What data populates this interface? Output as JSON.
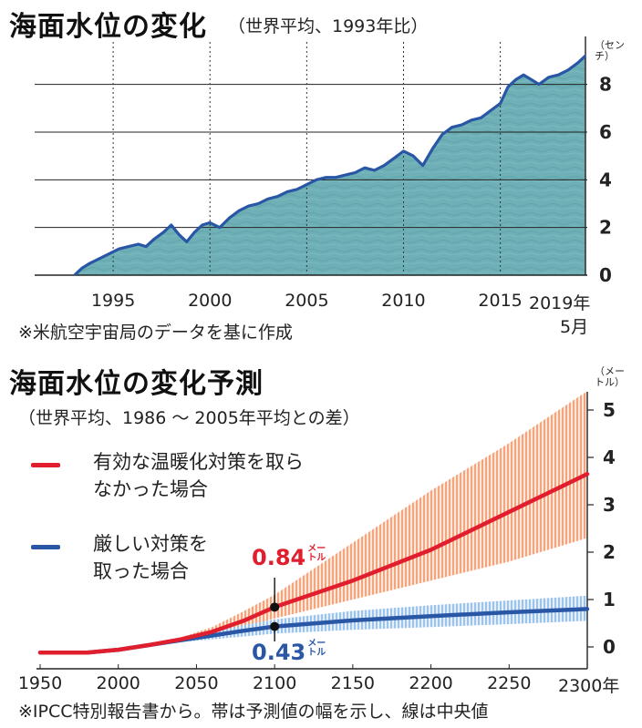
{
  "chart1": {
    "title": "海面水位の変化",
    "subtitle": "（世界平均、1993年比）",
    "unit_top": "（セン",
    "unit_bottom": "チ）",
    "note": "※米航空宇宙局のデータを基に作成",
    "last_tick_line1": "2019年",
    "last_tick_line2": "5月",
    "colors": {
      "line": "#2a56a6",
      "fill": "#6fb0b7",
      "grid": "#222222"
    }
  },
  "chart2": {
    "title": "海面水位の変化予測",
    "subtitle": "（世界平均、1986 ～ 2005年平均との差）",
    "unit_top": "（メー",
    "unit_bottom": "トル）",
    "note": "※IPCC特別報告書から。帯は予測値の幅を示し、線は中央値",
    "last_tick": "2300年",
    "legend": [
      {
        "label": "有効な温暖化対策を取らなかった場合",
        "color": "#e01e2e"
      },
      {
        "label": "厳しい対策を取った場合",
        "color": "#2a56a6"
      }
    ],
    "callouts": [
      {
        "value": "0.84",
        "unit_top": "メー",
        "unit_bottom": "トル",
        "color": "#e01e2e"
      },
      {
        "value": "0.43",
        "unit_top": "メー",
        "unit_bottom": "トル",
        "color": "#2a56a6"
      }
    ],
    "colors": {
      "high_band": "#f2a47e",
      "low_band": "#9cc3ea"
    }
  },
  "chart_data": [
    {
      "type": "area",
      "title": "海面水位の変化",
      "subtitle": "（世界平均、1993年比）",
      "xlabel": "",
      "ylabel": "（センチ）",
      "x_ticks": [
        "1995",
        "2000",
        "2005",
        "2010",
        "2015",
        "2019年5月"
      ],
      "y_ticks": [
        0,
        2,
        4,
        6,
        8
      ],
      "xlim": [
        1993,
        2019.4
      ],
      "ylim": [
        0,
        9.4
      ],
      "grid": "horizontal at y ticks, dotted vertical at 1995/2000/2005/2010/2015",
      "series": [
        {
          "x": [
            1993.0,
            1993.4,
            1993.8,
            1994.3,
            1994.8,
            1995.3,
            1995.8,
            1996.3,
            1996.7,
            1997.1,
            1997.6,
            1998.0,
            1998.4,
            1998.8,
            1999.2,
            1999.6,
            2000.0,
            2000.5,
            2001.0,
            2001.5,
            2002.0,
            2002.5,
            2003.0,
            2003.5,
            2004.0,
            2004.5,
            2005.0,
            2005.5,
            2006.0,
            2006.5,
            2007.0,
            2007.5,
            2008.0,
            2008.5,
            2009.0,
            2009.5,
            2010.0,
            2010.5,
            2011.0,
            2011.5,
            2012.0,
            2012.5,
            2013.0,
            2013.5,
            2014.0,
            2014.5,
            2015.0,
            2015.4,
            2015.8,
            2016.2,
            2016.6,
            2017.0,
            2017.5,
            2018.0,
            2018.5,
            2019.0,
            2019.4
          ],
          "values": [
            0.0,
            0.3,
            0.5,
            0.7,
            0.9,
            1.1,
            1.2,
            1.3,
            1.2,
            1.5,
            1.8,
            2.1,
            1.7,
            1.4,
            1.8,
            2.1,
            2.2,
            2.0,
            2.4,
            2.7,
            2.9,
            3.0,
            3.2,
            3.3,
            3.5,
            3.6,
            3.8,
            4.0,
            4.1,
            4.1,
            4.2,
            4.3,
            4.5,
            4.4,
            4.6,
            4.9,
            5.2,
            5.0,
            4.6,
            5.3,
            5.9,
            6.2,
            6.3,
            6.5,
            6.6,
            6.9,
            7.2,
            7.9,
            8.2,
            8.4,
            8.2,
            8.0,
            8.3,
            8.4,
            8.6,
            8.9,
            9.2
          ]
        }
      ]
    },
    {
      "type": "line",
      "title": "海面水位の変化予測",
      "subtitle": "（世界平均、1986 ～ 2005年平均との差）",
      "xlabel": "",
      "ylabel": "（メートル）",
      "x_ticks": [
        "1950",
        "2000",
        "2050",
        "2100",
        "2150",
        "2200",
        "2250",
        "2300年"
      ],
      "y_ticks": [
        0,
        1,
        2,
        3,
        4,
        5
      ],
      "xlim": [
        1950,
        2300
      ],
      "ylim": [
        -0.25,
        5.4
      ],
      "grid": "none",
      "series": [
        {
          "name": "有効な温暖化対策を取らなかった場合",
          "x": [
            1950,
            1980,
            2000,
            2020,
            2040,
            2060,
            2080,
            2100,
            2150,
            2200,
            2250,
            2300
          ],
          "values": [
            -0.12,
            -0.12,
            -0.06,
            0.04,
            0.16,
            0.32,
            0.55,
            0.84,
            1.4,
            2.05,
            2.85,
            3.65
          ],
          "band_low": [
            -0.12,
            -0.12,
            -0.06,
            0.03,
            0.13,
            0.25,
            0.42,
            0.6,
            1.0,
            1.4,
            1.8,
            2.3
          ],
          "band_high": [
            -0.12,
            -0.12,
            -0.06,
            0.05,
            0.2,
            0.42,
            0.75,
            1.1,
            2.2,
            3.3,
            4.3,
            5.4
          ]
        },
        {
          "name": "厳しい対策を取った場合",
          "x": [
            1950,
            1980,
            2000,
            2020,
            2040,
            2060,
            2080,
            2100,
            2150,
            2200,
            2250,
            2300
          ],
          "values": [
            -0.12,
            -0.12,
            -0.06,
            0.04,
            0.14,
            0.24,
            0.34,
            0.43,
            0.56,
            0.65,
            0.73,
            0.8
          ],
          "band_low": [
            -0.12,
            -0.12,
            -0.06,
            0.03,
            0.1,
            0.16,
            0.22,
            0.28,
            0.36,
            0.42,
            0.48,
            0.55
          ],
          "band_high": [
            -0.12,
            -0.12,
            -0.06,
            0.05,
            0.18,
            0.32,
            0.46,
            0.58,
            0.76,
            0.88,
            0.98,
            1.08
          ]
        }
      ]
    }
  ]
}
